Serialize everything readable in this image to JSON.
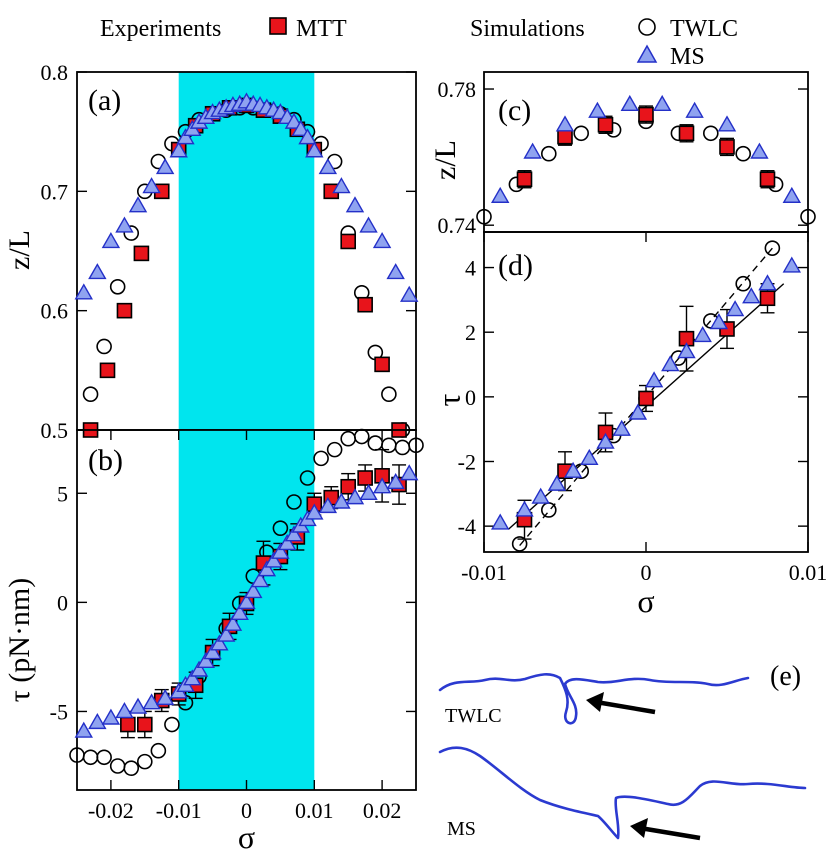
{
  "legend": {
    "experiments_label": "Experiments",
    "mtt_label": "MTT",
    "simulations_label": "Simulations",
    "twlc_label": "TWLC",
    "ms_label": "MS"
  },
  "colors": {
    "mtt_fill": "#e8141b",
    "ms_fill": "#8fa3f0",
    "ms_stroke": "#2430c8",
    "band": "#00e5ee",
    "curve": "#2b3ad0"
  },
  "panel_e": {
    "label": "(e)",
    "twlc_label": "TWLC",
    "ms_label": "MS"
  },
  "chart_data": [
    {
      "id": "a",
      "type": "scatter",
      "label": "(a)",
      "ylabel": "z/L",
      "xlabel": "",
      "xlim": [
        -0.025,
        0.025
      ],
      "ylim": [
        0.5,
        0.8
      ],
      "yticks": [
        "0.5",
        "0.6",
        "0.7",
        "0.8"
      ],
      "shaded_band": [
        -0.01,
        0.01
      ],
      "series": [
        {
          "name": "TWLC",
          "marker": "circle",
          "x": [
            -0.023,
            -0.021,
            -0.019,
            -0.017,
            -0.015,
            -0.013,
            -0.011,
            -0.009,
            -0.007,
            -0.005,
            -0.003,
            -0.001,
            0.001,
            0.003,
            0.005,
            0.007,
            0.009,
            0.011,
            0.013,
            0.015,
            0.017,
            0.019,
            0.021,
            0.023
          ],
          "y": [
            0.53,
            0.57,
            0.62,
            0.665,
            0.7,
            0.725,
            0.74,
            0.75,
            0.76,
            0.765,
            0.768,
            0.77,
            0.77,
            0.768,
            0.765,
            0.76,
            0.75,
            0.74,
            0.725,
            0.665,
            0.615,
            0.565,
            0.53,
            0.5
          ]
        },
        {
          "name": "MTT",
          "marker": "square",
          "x": [
            -0.023,
            -0.0205,
            -0.018,
            -0.0155,
            -0.0125,
            -0.01,
            -0.0075,
            -0.005,
            -0.0025,
            0,
            0.0025,
            0.005,
            0.0075,
            0.01,
            0.0125,
            0.015,
            0.0175,
            0.02,
            0.0225
          ],
          "y": [
            0.5,
            0.55,
            0.6,
            0.648,
            0.7,
            0.735,
            0.755,
            0.765,
            0.77,
            0.772,
            0.768,
            0.763,
            0.752,
            0.735,
            0.7,
            0.658,
            0.605,
            0.555,
            0.5
          ]
        },
        {
          "name": "MS",
          "marker": "triangle",
          "x": [
            -0.024,
            -0.022,
            -0.02,
            -0.018,
            -0.016,
            -0.014,
            -0.012,
            -0.01,
            -0.009,
            -0.008,
            -0.007,
            -0.006,
            -0.005,
            -0.004,
            -0.003,
            -0.002,
            -0.001,
            0,
            0.001,
            0.002,
            0.003,
            0.004,
            0.005,
            0.006,
            0.007,
            0.008,
            0.009,
            0.01,
            0.012,
            0.014,
            0.016,
            0.018,
            0.02,
            0.022,
            0.024
          ],
          "y": [
            0.615,
            0.632,
            0.658,
            0.671,
            0.688,
            0.704,
            0.72,
            0.734,
            0.745,
            0.752,
            0.758,
            0.762,
            0.766,
            0.768,
            0.77,
            0.772,
            0.773,
            0.775,
            0.773,
            0.772,
            0.77,
            0.768,
            0.766,
            0.762,
            0.758,
            0.752,
            0.745,
            0.734,
            0.72,
            0.704,
            0.688,
            0.671,
            0.658,
            0.632,
            0.613
          ]
        }
      ]
    },
    {
      "id": "b",
      "type": "scatter",
      "label": "(b)",
      "ylabel": "τ (pN·nm)",
      "xlabel": "σ",
      "xlim": [
        -0.025,
        0.025
      ],
      "ylim": [
        -8.6,
        7.9
      ],
      "xticks": [
        -0.02,
        -0.01,
        0,
        0.01,
        0.02
      ],
      "xticklabels": [
        "-0.02",
        "-0.01",
        "0",
        "0.01",
        "0.02"
      ],
      "yticks": [
        -5,
        0,
        5
      ],
      "yticklabels": [
        "-5",
        "0",
        "5"
      ],
      "shaded_band": [
        -0.01,
        0.01
      ],
      "series": [
        {
          "name": "TWLC",
          "marker": "circle",
          "x": [
            -0.025,
            -0.023,
            -0.021,
            -0.019,
            -0.017,
            -0.015,
            -0.013,
            -0.011,
            -0.009,
            -0.007,
            -0.005,
            -0.003,
            -0.001,
            0.001,
            0.003,
            0.005,
            0.007,
            0.009,
            0.011,
            0.013,
            0.015,
            0.017,
            0.019,
            0.021,
            0.023,
            0.025
          ],
          "y": [
            -7.0,
            -7.1,
            -7.1,
            -7.5,
            -7.6,
            -7.3,
            -6.8,
            -5.6,
            -4.6,
            -3.4,
            -2.3,
            -1.2,
            -0.05,
            1.2,
            2.3,
            3.4,
            4.6,
            5.7,
            6.6,
            7.0,
            7.5,
            7.6,
            7.3,
            7.2,
            7.1,
            7.2
          ]
        },
        {
          "name": "MTT",
          "marker": "square",
          "x": [
            -0.0175,
            -0.015,
            -0.0125,
            -0.01,
            -0.0075,
            -0.005,
            -0.0025,
            0,
            0.0025,
            0.005,
            0.0075,
            0.01,
            0.0125,
            0.015,
            0.0175,
            0.02,
            0.0225
          ],
          "y": [
            -5.6,
            -5.6,
            -4.5,
            -4.2,
            -3.8,
            -2.3,
            -1.1,
            -0.05,
            1.8,
            2.1,
            3.0,
            4.5,
            4.8,
            5.3,
            5.7,
            5.8,
            5.4
          ],
          "err": [
            0.6,
            0.6,
            0.5,
            0.5,
            0.6,
            0.6,
            0.6,
            0.5,
            1.0,
            0.6,
            0.6,
            0.5,
            0.5,
            0.6,
            0.6,
            1.2,
            0.9
          ]
        },
        {
          "name": "MS",
          "marker": "triangle",
          "x": [
            -0.024,
            -0.022,
            -0.02,
            -0.018,
            -0.016,
            -0.014,
            -0.012,
            -0.01,
            -0.009,
            -0.008,
            -0.007,
            -0.006,
            -0.005,
            -0.004,
            -0.003,
            -0.002,
            -0.001,
            0,
            0.001,
            0.002,
            0.003,
            0.004,
            0.005,
            0.006,
            0.007,
            0.008,
            0.009,
            0.01,
            0.012,
            0.014,
            0.016,
            0.018,
            0.02,
            0.022,
            0.024
          ],
          "y": [
            -5.9,
            -5.5,
            -5.3,
            -5.0,
            -4.8,
            -4.6,
            -4.4,
            -4.1,
            -3.8,
            -3.5,
            -3.1,
            -2.7,
            -2.3,
            -1.9,
            -1.5,
            -1.0,
            -0.5,
            0,
            0.5,
            1.0,
            1.5,
            1.9,
            2.3,
            2.7,
            3.1,
            3.5,
            3.8,
            4.1,
            4.4,
            4.6,
            4.8,
            5.0,
            5.3,
            5.5,
            5.9
          ]
        }
      ]
    },
    {
      "id": "c",
      "type": "scatter",
      "label": "(c)",
      "ylabel": "z/L",
      "xlabel": "",
      "xlim": [
        -0.01,
        0.01
      ],
      "ylim": [
        0.738,
        0.785
      ],
      "yticks": [
        0.74,
        0.78
      ],
      "yticklabels": [
        "0.74",
        "0.78"
      ],
      "series": [
        {
          "name": "TWLC",
          "marker": "circle",
          "x": [
            -0.01,
            -0.008,
            -0.006,
            -0.004,
            -0.002,
            0,
            0.002,
            0.004,
            0.006,
            0.008,
            0.01
          ],
          "y": [
            0.7425,
            0.752,
            0.761,
            0.767,
            0.768,
            0.7705,
            0.767,
            0.767,
            0.761,
            0.752,
            0.7425
          ]
        },
        {
          "name": "MTT",
          "marker": "square",
          "x": [
            -0.0075,
            -0.005,
            -0.0025,
            0,
            0.0025,
            0.005,
            0.0075
          ],
          "y": [
            0.7535,
            0.766,
            0.7695,
            0.7725,
            0.767,
            0.763,
            0.7535
          ],
          "err": [
            0.0025,
            0.0025,
            0.0025,
            0.0025,
            0.0025,
            0.0025,
            0.0025
          ]
        },
        {
          "name": "MS",
          "marker": "triangle",
          "x": [
            -0.009,
            -0.007,
            -0.005,
            -0.003,
            -0.001,
            0.001,
            0.003,
            0.005,
            0.007,
            0.009
          ],
          "y": [
            0.7485,
            0.7615,
            0.7695,
            0.7735,
            0.7755,
            0.7755,
            0.7735,
            0.7695,
            0.7615,
            0.7485
          ]
        }
      ]
    },
    {
      "id": "d",
      "type": "scatter",
      "label": "(d)",
      "ylabel": "τ",
      "xlabel": "σ",
      "xlim": [
        -0.01,
        0.01
      ],
      "ylim": [
        -4.8,
        5.1
      ],
      "xticks": [
        -0.01,
        0,
        0.01
      ],
      "xticklabels": [
        "-0.01",
        "0",
        "0.01"
      ],
      "yticks": [
        -4,
        -2,
        0,
        2,
        4
      ],
      "yticklabels": [
        "-4",
        "-2",
        "0",
        "2",
        "4"
      ],
      "fit_lines": [
        {
          "name": "solid-fit",
          "dash": false,
          "x": [
            -0.0085,
            0.0085
          ],
          "y": [
            -4.1,
            3.5
          ]
        },
        {
          "name": "dashed-fit",
          "dash": true,
          "x": [
            -0.0078,
            0.0078
          ],
          "y": [
            -4.6,
            4.6
          ]
        }
      ],
      "series": [
        {
          "name": "TWLC",
          "marker": "circle",
          "x": [
            -0.0078,
            -0.006,
            -0.004,
            -0.002,
            0,
            0.002,
            0.004,
            0.006,
            0.0078
          ],
          "y": [
            -4.55,
            -3.5,
            -2.3,
            -1.2,
            -0.05,
            1.2,
            2.35,
            3.5,
            4.6
          ]
        },
        {
          "name": "MTT",
          "marker": "square",
          "x": [
            -0.0075,
            -0.005,
            -0.0025,
            0,
            0.0025,
            0.005,
            0.0075
          ],
          "y": [
            -3.8,
            -2.3,
            -1.1,
            -0.05,
            1.8,
            2.1,
            3.05
          ],
          "err": [
            0.6,
            0.6,
            0.6,
            0.4,
            1.0,
            0.6,
            0.45
          ]
        },
        {
          "name": "MS",
          "marker": "triangle",
          "x": [
            -0.009,
            -0.0075,
            -0.0065,
            -0.0055,
            -0.0045,
            -0.0035,
            -0.0025,
            -0.0015,
            -0.0005,
            0.0005,
            0.0015,
            0.0025,
            0.0035,
            0.0045,
            0.0055,
            0.0065,
            0.0075,
            0.009
          ],
          "y": [
            -3.9,
            -3.5,
            -3.1,
            -2.7,
            -2.3,
            -1.9,
            -1.4,
            -1.0,
            -0.5,
            0.5,
            1.0,
            1.4,
            1.9,
            2.3,
            2.7,
            3.1,
            3.5,
            4.05
          ]
        }
      ]
    }
  ]
}
